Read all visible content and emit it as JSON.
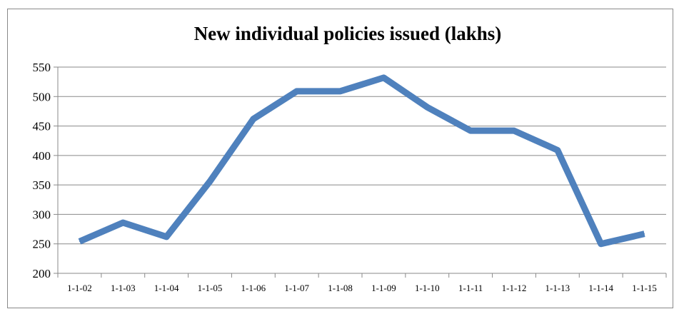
{
  "chart_data": {
    "type": "line",
    "title": "New individual policies issued (lakhs)",
    "xlabel": "",
    "ylabel": "",
    "categories": [
      "1-1-02",
      "1-1-03",
      "1-1-04",
      "1-1-05",
      "1-1-06",
      "1-1-07",
      "1-1-08",
      "1-1-09",
      "1-1-10",
      "1-1-11",
      "1-1-12",
      "1-1-13",
      "1-1-14",
      "1-1-15"
    ],
    "series": [
      {
        "values": [
          254,
          286,
          262,
          356,
          462,
          509,
          509,
          532,
          482,
          442,
          442,
          409,
          250,
          267
        ],
        "color": "#4f81bd"
      }
    ],
    "ylim": [
      200,
      550
    ],
    "yticks": [
      200,
      250,
      300,
      350,
      400,
      450,
      500,
      550
    ],
    "grid": true,
    "legend": "none"
  },
  "colors": {
    "line": "#4f81bd",
    "grid": "#898989",
    "axis": "#898989",
    "text": "#000000"
  }
}
